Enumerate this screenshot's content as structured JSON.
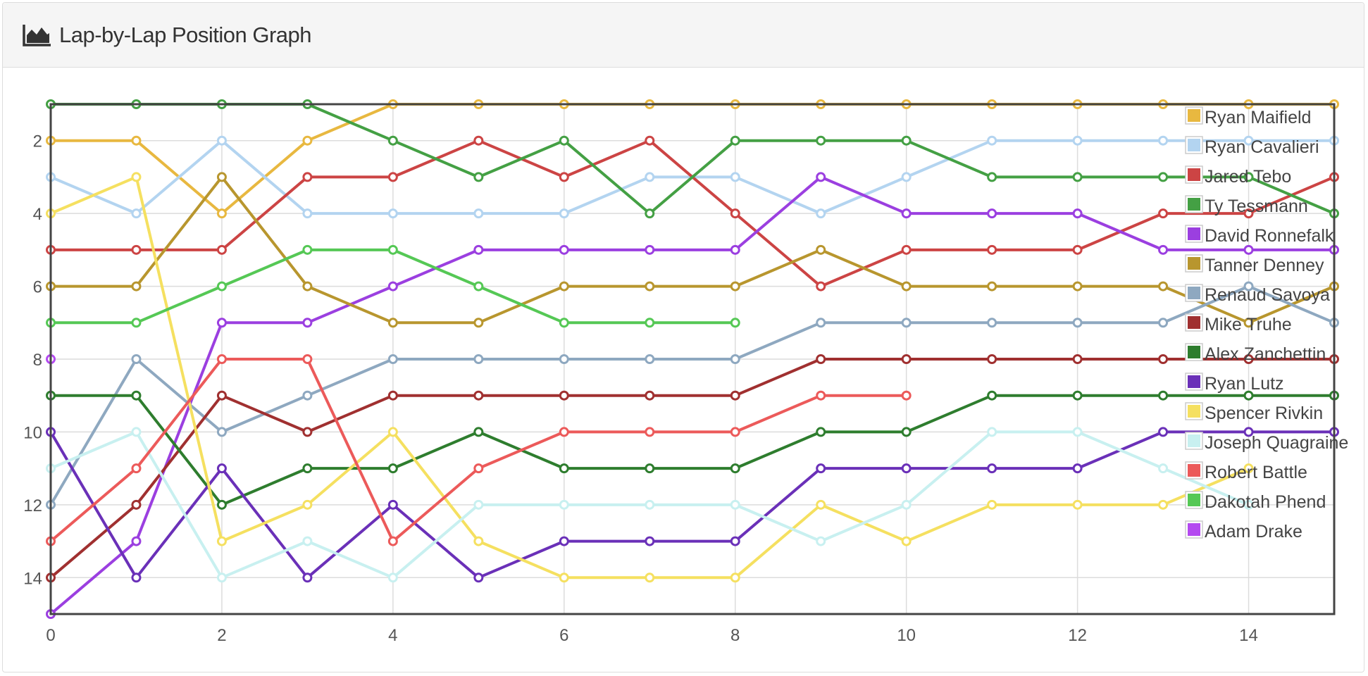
{
  "header": {
    "title": "Lap-by-Lap Position Graph",
    "icon": "area-chart-icon"
  },
  "chart_data": {
    "type": "line",
    "xlabel": "",
    "ylabel": "",
    "xlim": [
      0,
      15
    ],
    "ylim": [
      15,
      1
    ],
    "y_reversed": true,
    "x_ticks": [
      0,
      2,
      4,
      6,
      8,
      10,
      12,
      14
    ],
    "y_ticks": [
      2,
      4,
      6,
      8,
      10,
      12,
      14
    ],
    "grid": true,
    "legend_position": "top-right",
    "x": [
      0,
      1,
      2,
      3,
      4,
      5,
      6,
      7,
      8,
      9,
      10,
      11,
      12,
      13,
      14,
      15
    ],
    "series": [
      {
        "name": "Ryan Maifield",
        "color": "#e8b840",
        "values": [
          2,
          2,
          4,
          2,
          1,
          1,
          1,
          1,
          1,
          1,
          1,
          1,
          1,
          1,
          1,
          1
        ]
      },
      {
        "name": "Ryan Cavalieri",
        "color": "#b3d4f0",
        "values": [
          3,
          4,
          2,
          4,
          4,
          4,
          4,
          3,
          3,
          4,
          3,
          2,
          2,
          2,
          2,
          2
        ]
      },
      {
        "name": "Jared Tebo",
        "color": "#cc4444",
        "values": [
          5,
          5,
          5,
          3,
          3,
          2,
          3,
          2,
          4,
          6,
          5,
          5,
          5,
          4,
          4,
          3
        ]
      },
      {
        "name": "Ty Tessmann",
        "color": "#44a044",
        "values": [
          1,
          1,
          1,
          1,
          2,
          3,
          2,
          4,
          2,
          2,
          2,
          3,
          3,
          3,
          3,
          4
        ]
      },
      {
        "name": "David Ronnefalk",
        "color": "#9b3fe0",
        "values": [
          15,
          13,
          7,
          7,
          6,
          5,
          5,
          5,
          5,
          3,
          4,
          4,
          4,
          5,
          5,
          5
        ]
      },
      {
        "name": "Tanner Denney",
        "color": "#b8962e",
        "values": [
          6,
          6,
          3,
          6,
          7,
          7,
          6,
          6,
          6,
          5,
          6,
          6,
          6,
          6,
          7,
          6
        ]
      },
      {
        "name": "Renaud Savoya",
        "color": "#8ea8c0",
        "values": [
          12,
          8,
          10,
          9,
          8,
          8,
          8,
          8,
          8,
          7,
          7,
          7,
          7,
          7,
          6,
          7
        ]
      },
      {
        "name": "Mike Truhe",
        "color": "#a03030",
        "values": [
          14,
          12,
          9,
          10,
          9,
          9,
          9,
          9,
          9,
          8,
          8,
          8,
          8,
          8,
          8,
          8
        ]
      },
      {
        "name": "Alex Zanchettin",
        "color": "#2e7d2e",
        "values": [
          9,
          9,
          12,
          11,
          11,
          10,
          11,
          11,
          11,
          10,
          10,
          9,
          9,
          9,
          9,
          9
        ]
      },
      {
        "name": "Ryan Lutz",
        "color": "#6a30b8",
        "values": [
          10,
          14,
          11,
          14,
          12,
          14,
          13,
          13,
          13,
          11,
          11,
          11,
          11,
          10,
          10,
          10
        ]
      },
      {
        "name": "Spencer Rivkin",
        "color": "#f5e060",
        "values": [
          4,
          3,
          13,
          12,
          10,
          13,
          14,
          14,
          14,
          12,
          13,
          12,
          12,
          12,
          11,
          null
        ]
      },
      {
        "name": "Joseph Quagraine",
        "color": "#c8f0f0",
        "values": [
          11,
          10,
          14,
          13,
          14,
          12,
          12,
          12,
          12,
          13,
          12,
          10,
          10,
          11,
          12,
          null
        ]
      },
      {
        "name": "Robert Battle",
        "color": "#ec5a5a",
        "values": [
          13,
          11,
          8,
          8,
          13,
          11,
          10,
          10,
          10,
          9,
          9,
          null,
          null,
          null,
          null,
          null
        ]
      },
      {
        "name": "Dakotah Phend",
        "color": "#55c855",
        "values": [
          7,
          7,
          6,
          5,
          5,
          6,
          7,
          7,
          7,
          null,
          null,
          null,
          null,
          null,
          null,
          null
        ]
      },
      {
        "name": "Adam Drake",
        "color": "#b44af0",
        "values": [
          8,
          null,
          null,
          null,
          null,
          null,
          null,
          null,
          null,
          null,
          null,
          null,
          null,
          null,
          null,
          null
        ]
      }
    ]
  }
}
